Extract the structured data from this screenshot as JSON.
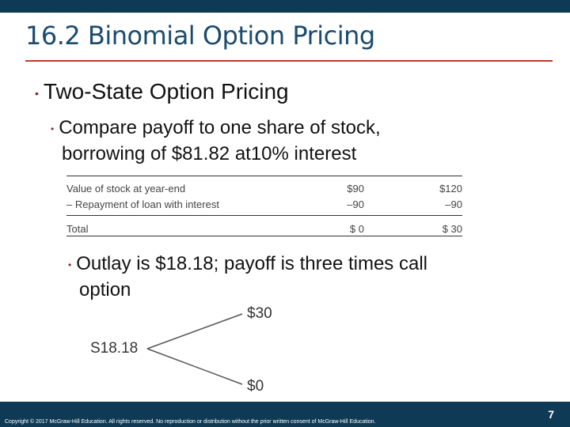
{
  "slide": {
    "title": "16.2 Binomial Option Pricing",
    "bullets": {
      "level1": "Two-State Option Pricing",
      "level2_line1": "Compare payoff to one share of stock,",
      "level2_line2": "borrowing of $81.82 at10% interest",
      "level3_line1": "Outlay is $18.18; payoff is three times call",
      "level3_line2": "option"
    },
    "bullet_marker": "•"
  },
  "table": {
    "rows": [
      {
        "label": "Value of stock at year-end",
        "col1": "$90",
        "col2": "$120"
      },
      {
        "label": "– Repayment of loan with interest",
        "col1": "–90",
        "col2": "–90"
      }
    ],
    "total": {
      "label": "Total",
      "col1": "$ 0",
      "col2": "$ 30"
    }
  },
  "tree": {
    "root": "S18.18",
    "up": "$30",
    "down": "$0"
  },
  "footer": {
    "copyright": "Copyright © 2017 McGraw-Hill Education. All rights reserved. No reproduction or distribution without the prior written consent of McGraw-Hill Education.",
    "page_number": "7"
  },
  "colors": {
    "header_bar": "#0f3a55",
    "title": "#1b4b6e",
    "title_rule": "#c0392b",
    "bullet_marker": "#8a2b2b"
  }
}
